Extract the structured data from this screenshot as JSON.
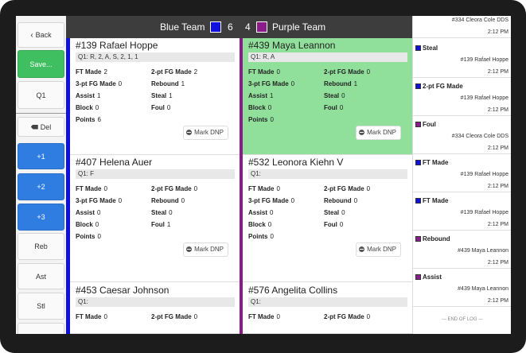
{
  "sidebar": [
    "Back",
    "Save...",
    "Q1",
    "Del",
    "+1",
    "+2",
    "+3",
    "Reb",
    "Ast",
    "Stl"
  ],
  "scoreboard": {
    "home_team": "Blue Team",
    "home_color": "#1010e0",
    "home_score": 6,
    "away_score": 4,
    "away_team": "Purple Team",
    "away_color": "#8b1a8b"
  },
  "players": [
    {
      "name": "#139 Rafael Hoppe",
      "quarter_log": "Q1: R, 2, A, S, 2, 1, 1",
      "stats": [
        {
          "label": "FT Made",
          "value": 2
        },
        {
          "label": "2-pt FG Made",
          "value": 2
        },
        {
          "label": "3-pt FG Made",
          "value": 0
        },
        {
          "label": "Rebound",
          "value": 1
        },
        {
          "label": "Assist",
          "value": 1
        },
        {
          "label": "Steal",
          "value": 1
        },
        {
          "label": "Block",
          "value": 0
        },
        {
          "label": "Foul",
          "value": 0
        },
        {
          "label": "Points",
          "value": 6
        }
      ],
      "button": "Mark DNP"
    },
    {
      "name": "#439 Maya Leannon",
      "quarter_log": "Q1: R, A",
      "stats": [
        {
          "label": "FT Made",
          "value": 0
        },
        {
          "label": "2-pt FG Made",
          "value": 0
        },
        {
          "label": "3-pt FG Made",
          "value": 0
        },
        {
          "label": "Rebound",
          "value": 1
        },
        {
          "label": "Assist",
          "value": 1
        },
        {
          "label": "Steal",
          "value": 0
        },
        {
          "label": "Block",
          "value": 0
        },
        {
          "label": "Foul",
          "value": 0
        },
        {
          "label": "Points",
          "value": 0
        }
      ],
      "button": "Mark DNP"
    },
    {
      "name": "#407 Helena Auer",
      "quarter_log": "Q1: F",
      "stats": [
        {
          "label": "FT Made",
          "value": 0
        },
        {
          "label": "2-pt FG Made",
          "value": 0
        },
        {
          "label": "3-pt FG Made",
          "value": 0
        },
        {
          "label": "Rebound",
          "value": 0
        },
        {
          "label": "Assist",
          "value": 0
        },
        {
          "label": "Steal",
          "value": 0
        },
        {
          "label": "Block",
          "value": 0
        },
        {
          "label": "Foul",
          "value": 1
        },
        {
          "label": "Points",
          "value": 0
        }
      ],
      "button": "Mark DNP"
    },
    {
      "name": "#532 Leonora Kiehn V",
      "quarter_log": "Q1:",
      "stats": [
        {
          "label": "FT Made",
          "value": 0
        },
        {
          "label": "2-pt FG Made",
          "value": 0
        },
        {
          "label": "3-pt FG Made",
          "value": 0
        },
        {
          "label": "Rebound",
          "value": 0
        },
        {
          "label": "Assist",
          "value": 0
        },
        {
          "label": "Steal",
          "value": 0
        },
        {
          "label": "Block",
          "value": 0
        },
        {
          "label": "Foul",
          "value": 0
        },
        {
          "label": "Points",
          "value": 0
        }
      ],
      "button": "Mark DNP"
    },
    {
      "name": "#453 Caesar Johnson",
      "quarter_log": "Q1:",
      "stats": [
        {
          "label": "FT Made",
          "value": 0
        },
        {
          "label": "2-pt FG Made",
          "value": 0
        }
      ]
    },
    {
      "name": "#576 Angelita Collins",
      "quarter_log": "Q1:",
      "stats": [
        {
          "label": "FT Made",
          "value": 0
        },
        {
          "label": "2-pt FG Made",
          "value": 0
        }
      ]
    }
  ],
  "log": {
    "entries": [
      {
        "player": "#334 Cleora Cole DDS",
        "time": "2:12 PM"
      },
      {
        "event": "Steal",
        "color": "#1010e0",
        "player": "#139 Rafael Hoppe",
        "time": "2:12 PM"
      },
      {
        "event": "2-pt FG Made",
        "color": "#1010e0",
        "player": "#139 Rafael Hoppe",
        "time": "2:12 PM"
      },
      {
        "event": "Foul",
        "color": "#8b1a8b",
        "player": "#334 Cleora Cole DDS",
        "time": "2:12 PM"
      },
      {
        "event": "FT Made",
        "color": "#1010e0",
        "player": "#139 Rafael Hoppe",
        "time": "2:12 PM"
      },
      {
        "event": "FT Made",
        "color": "#1010e0",
        "player": "#139 Rafael Hoppe",
        "time": "2:12 PM"
      },
      {
        "event": "Rebound",
        "color": "#8b1a8b",
        "player": "#439 Maya Leannon",
        "time": "2:12 PM"
      },
      {
        "event": "Assist",
        "color": "#8b1a8b",
        "player": "#439 Maya Leannon",
        "time": "2:12 PM"
      }
    ],
    "end": "--- END OF LOG ---"
  }
}
